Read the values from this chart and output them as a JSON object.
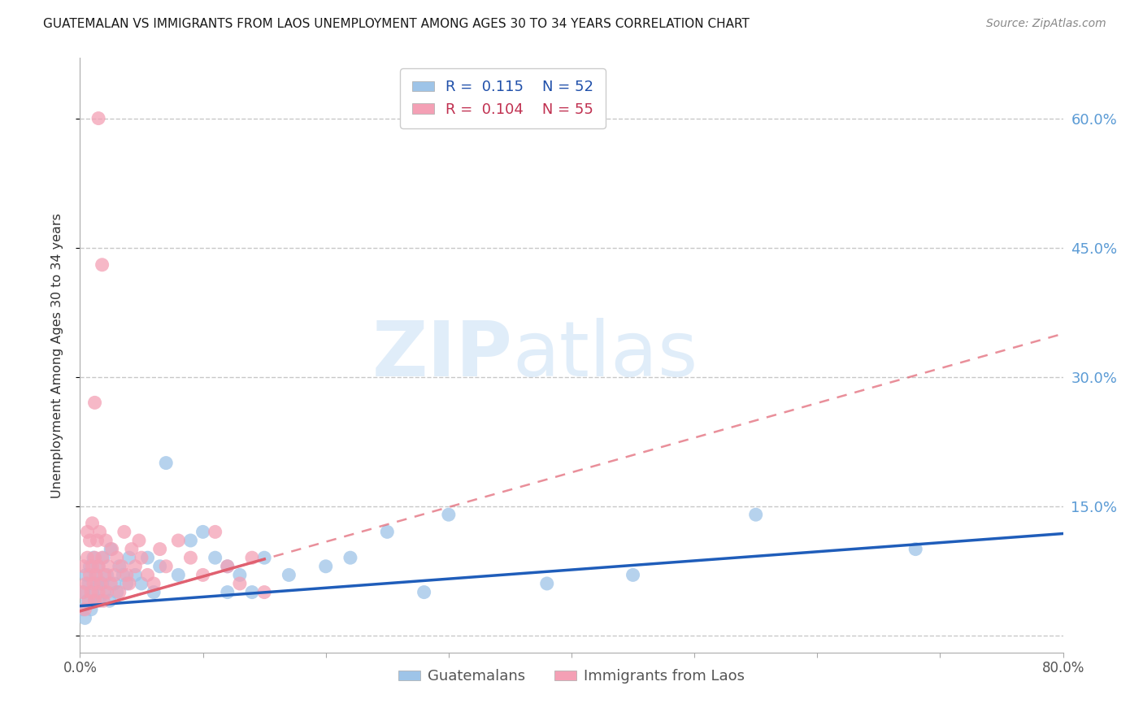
{
  "title": "GUATEMALAN VS IMMIGRANTS FROM LAOS UNEMPLOYMENT AMONG AGES 30 TO 34 YEARS CORRELATION CHART",
  "source": "Source: ZipAtlas.com",
  "ylabel": "Unemployment Among Ages 30 to 34 years",
  "xlim": [
    0.0,
    0.8
  ],
  "ylim": [
    -0.02,
    0.67
  ],
  "xticks": [
    0.0,
    0.1,
    0.2,
    0.3,
    0.4,
    0.5,
    0.6,
    0.7,
    0.8
  ],
  "xticklabels": [
    "0.0%",
    "",
    "",
    "",
    "",
    "",
    "",
    "",
    "80.0%"
  ],
  "ytick_positions": [
    0.0,
    0.15,
    0.3,
    0.45,
    0.6
  ],
  "ytick_labels_right": [
    "",
    "15.0%",
    "30.0%",
    "45.0%",
    "60.0%"
  ],
  "right_axis_color": "#5b9bd5",
  "grid_color": "#c8c8c8",
  "background_color": "#ffffff",
  "series1_color": "#9ec4e8",
  "series2_color": "#f4a0b5",
  "trendline1_color": "#1f5dba",
  "trendline2_color": "#e06070",
  "R1": 0.115,
  "N1": 52,
  "R2": 0.104,
  "N2": 55,
  "legend_label1": "Guatemalans",
  "legend_label2": "Immigrants from Laos",
  "watermark_zip": "ZIP",
  "watermark_atlas": "atlas",
  "guatemalan_x": [
    0.002,
    0.003,
    0.004,
    0.005,
    0.006,
    0.007,
    0.008,
    0.009,
    0.01,
    0.011,
    0.012,
    0.013,
    0.014,
    0.015,
    0.016,
    0.018,
    0.019,
    0.02,
    0.022,
    0.024,
    0.025,
    0.028,
    0.03,
    0.032,
    0.035,
    0.038,
    0.04,
    0.045,
    0.05,
    0.055,
    0.06,
    0.065,
    0.07,
    0.08,
    0.09,
    0.1,
    0.11,
    0.12,
    0.12,
    0.13,
    0.14,
    0.15,
    0.17,
    0.2,
    0.22,
    0.25,
    0.28,
    0.3,
    0.38,
    0.45,
    0.55,
    0.68
  ],
  "guatemalan_y": [
    0.03,
    0.05,
    0.02,
    0.07,
    0.04,
    0.06,
    0.08,
    0.03,
    0.05,
    0.09,
    0.04,
    0.07,
    0.06,
    0.08,
    0.04,
    0.06,
    0.09,
    0.05,
    0.07,
    0.04,
    0.1,
    0.06,
    0.05,
    0.08,
    0.07,
    0.06,
    0.09,
    0.07,
    0.06,
    0.09,
    0.05,
    0.08,
    0.2,
    0.07,
    0.11,
    0.12,
    0.09,
    0.05,
    0.08,
    0.07,
    0.05,
    0.09,
    0.07,
    0.08,
    0.09,
    0.12,
    0.05,
    0.14,
    0.06,
    0.07,
    0.14,
    0.1
  ],
  "laos_x": [
    0.002,
    0.003,
    0.004,
    0.005,
    0.006,
    0.006,
    0.007,
    0.008,
    0.008,
    0.009,
    0.01,
    0.01,
    0.011,
    0.012,
    0.012,
    0.013,
    0.014,
    0.015,
    0.015,
    0.016,
    0.017,
    0.018,
    0.019,
    0.02,
    0.021,
    0.022,
    0.023,
    0.025,
    0.026,
    0.028,
    0.03,
    0.032,
    0.034,
    0.036,
    0.038,
    0.04,
    0.042,
    0.045,
    0.048,
    0.05,
    0.055,
    0.06,
    0.065,
    0.07,
    0.08,
    0.09,
    0.1,
    0.11,
    0.12,
    0.13,
    0.14,
    0.15,
    0.015,
    0.018,
    0.012
  ],
  "laos_y": [
    0.05,
    0.08,
    0.03,
    0.06,
    0.09,
    0.12,
    0.04,
    0.07,
    0.11,
    0.05,
    0.08,
    0.13,
    0.06,
    0.09,
    0.04,
    0.07,
    0.11,
    0.05,
    0.08,
    0.12,
    0.06,
    0.09,
    0.04,
    0.07,
    0.11,
    0.05,
    0.08,
    0.06,
    0.1,
    0.07,
    0.09,
    0.05,
    0.08,
    0.12,
    0.07,
    0.06,
    0.1,
    0.08,
    0.11,
    0.09,
    0.07,
    0.06,
    0.1,
    0.08,
    0.11,
    0.09,
    0.07,
    0.12,
    0.08,
    0.06,
    0.09,
    0.05,
    0.6,
    0.43,
    0.27
  ],
  "blue_trend_x0": 0.0,
  "blue_trend_y0": 0.034,
  "blue_trend_x1": 0.8,
  "blue_trend_y1": 0.118,
  "pink_trend_x0": 0.0,
  "pink_trend_y0": 0.028,
  "pink_trend_x1": 0.8,
  "pink_trend_y1": 0.35
}
